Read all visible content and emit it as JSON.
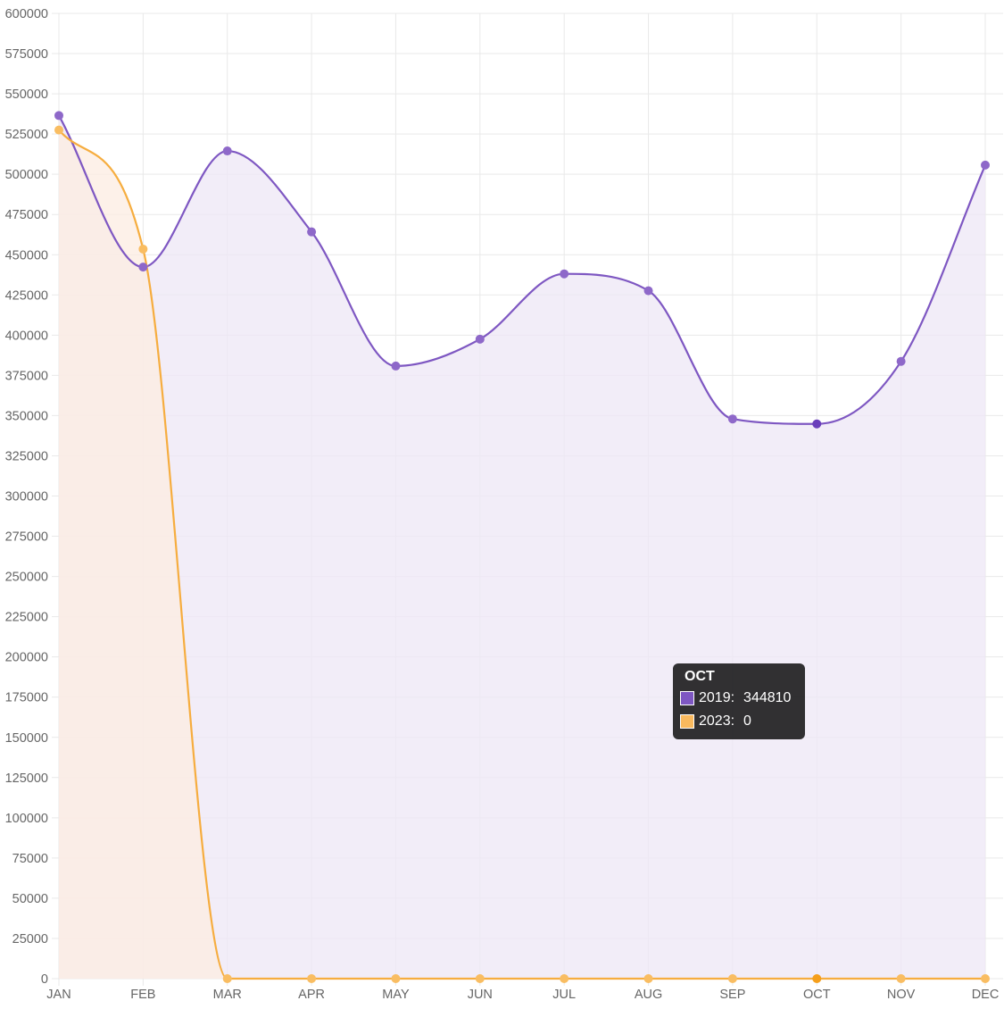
{
  "chart_data": {
    "type": "area",
    "title": "",
    "xlabel": "",
    "ylabel": "",
    "categories": [
      "JAN",
      "FEB",
      "MAR",
      "APR",
      "MAY",
      "JUN",
      "JUL",
      "AUG",
      "SEP",
      "OCT",
      "NOV",
      "DEC"
    ],
    "series": [
      {
        "name": "2019",
        "color": "#7e57c2",
        "fill": "#ede7f6",
        "values": [
          536500,
          442300,
          514500,
          464200,
          380800,
          397500,
          438100,
          427600,
          347900,
          344810,
          383700,
          505700
        ]
      },
      {
        "name": "2023",
        "color": "#f6ad3f",
        "fill": "#fcece2",
        "values": [
          527500,
          453500,
          0,
          0,
          0,
          0,
          0,
          0,
          0,
          0,
          0,
          0
        ]
      }
    ],
    "ylim": [
      0,
      600000
    ],
    "yticks": [
      0,
      25000,
      50000,
      75000,
      100000,
      125000,
      150000,
      175000,
      200000,
      225000,
      250000,
      275000,
      300000,
      325000,
      350000,
      375000,
      400000,
      425000,
      450000,
      475000,
      500000,
      525000,
      550000,
      575000,
      600000
    ],
    "grid": true,
    "legend": "none",
    "tooltip": {
      "title": "OCT",
      "rows": [
        {
          "label": "2019:",
          "value": "344810",
          "color": "#7e57c2"
        },
        {
          "label": "2023:",
          "value": "0",
          "color": "#f9b95e"
        }
      ]
    },
    "highlight_index": 9
  }
}
